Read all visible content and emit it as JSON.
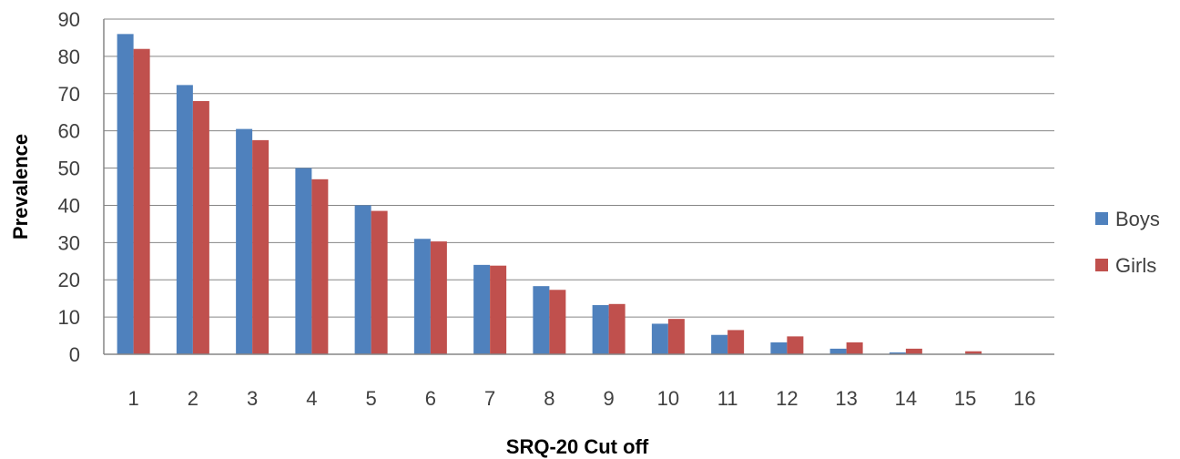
{
  "chart_data": {
    "type": "bar",
    "xlabel": "SRQ-20 Cut off",
    "ylabel": "Prevalence",
    "ylim": [
      0,
      90
    ],
    "yticks": [
      0,
      10,
      20,
      30,
      40,
      50,
      60,
      70,
      80,
      90
    ],
    "grid": true,
    "legend_position": "right",
    "categories": [
      "1",
      "2",
      "3",
      "4",
      "5",
      "6",
      "7",
      "8",
      "9",
      "10",
      "11",
      "12",
      "13",
      "14",
      "15",
      "16"
    ],
    "series": [
      {
        "name": "Boys",
        "color": "#4F81BD",
        "values": [
          86,
          72.3,
          60.5,
          50,
          40,
          31,
          24,
          18.3,
          13.2,
          8.2,
          5.2,
          3.2,
          1.5,
          0.5,
          0,
          0
        ]
      },
      {
        "name": "Girls",
        "color": "#C0504D",
        "values": [
          82,
          68,
          57.5,
          47,
          38.5,
          30.3,
          23.8,
          17.3,
          13.5,
          9.5,
          6.5,
          4.8,
          3.2,
          1.5,
          0.8,
          0
        ]
      }
    ]
  }
}
